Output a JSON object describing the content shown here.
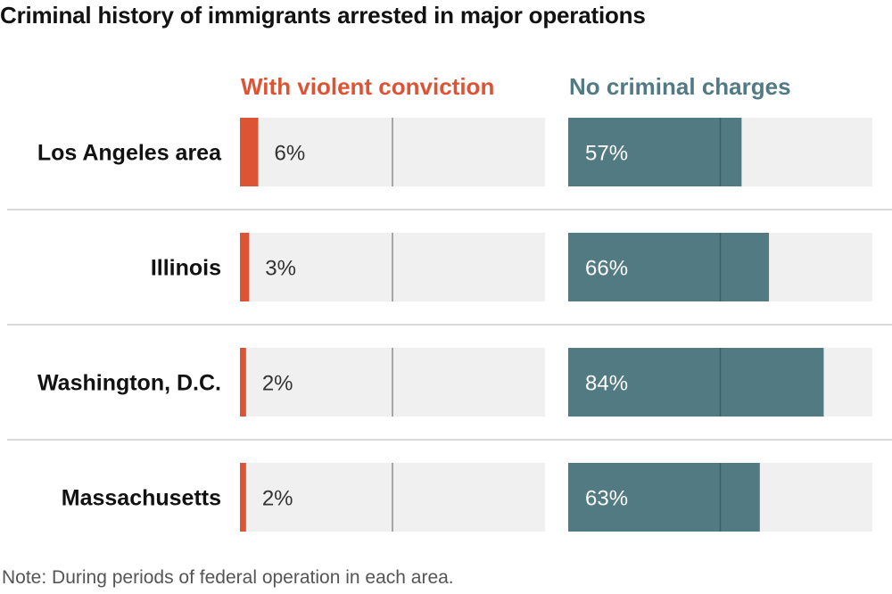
{
  "title": "Criminal history of immigrants arrested in major operations",
  "note": "Note: During periods of federal operation in each area.",
  "colors": {
    "violent": "#dd5435",
    "no_charges": "#517a82",
    "track": "#f0f0f0",
    "divider": "#d9d9d9",
    "midline_light": "#8c8c8c",
    "midline_dark": "#3d5e64"
  },
  "chart_data": {
    "type": "bar",
    "orientation": "horizontal",
    "categories": [
      "Los Angeles area",
      "Illinois",
      "Washington, D.C.",
      "Massachusetts"
    ],
    "series": [
      {
        "name": "With violent conviction",
        "values": [
          6,
          3,
          2,
          2
        ],
        "labels": [
          "6%",
          "3%",
          "2%",
          "2%"
        ],
        "xlim": [
          0,
          100
        ]
      },
      {
        "name": "No criminal charges",
        "values": [
          57,
          66,
          84,
          63
        ],
        "labels": [
          "57%",
          "66%",
          "84%",
          "63%"
        ],
        "xlim": [
          0,
          100
        ]
      }
    ],
    "reference_line_value": 50,
    "title": "Criminal history of immigrants arrested in major operations",
    "xlabel": "",
    "ylabel": ""
  }
}
